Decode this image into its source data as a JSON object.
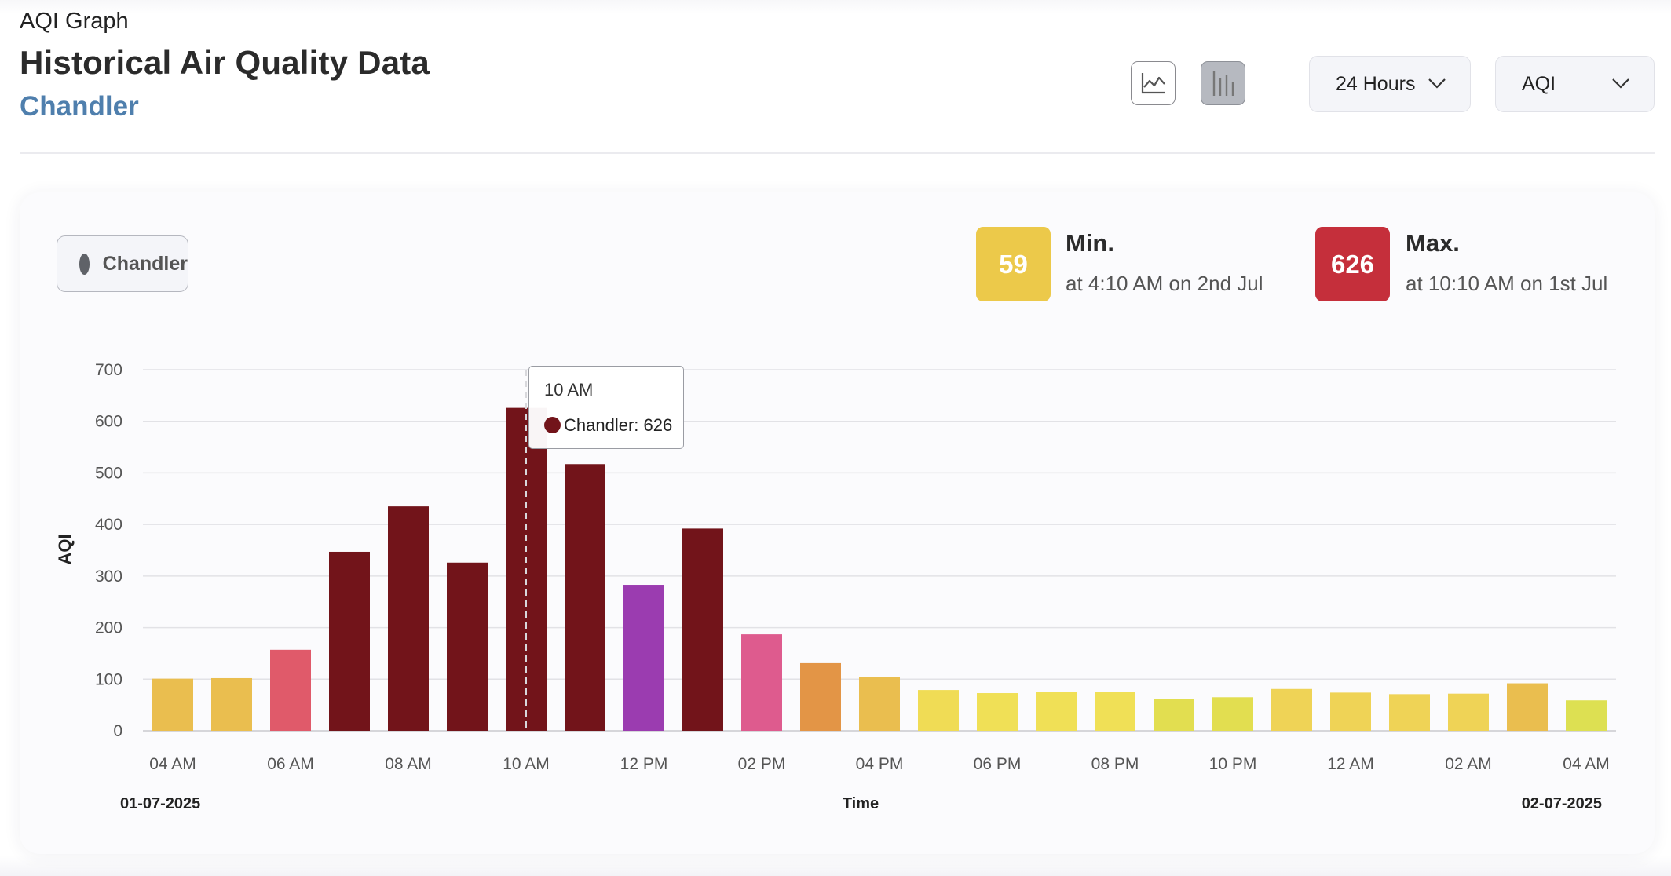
{
  "header": {
    "label": "AQI Graph",
    "title": "Historical Air Quality Data",
    "location": "Chandler"
  },
  "view_toggle": {
    "line_icon": "line-chart-icon",
    "bar_icon": "bar-chart-icon",
    "active": "bar"
  },
  "dropdowns": {
    "range": "24 Hours",
    "metric": "AQI"
  },
  "legend": {
    "label": "Chandler",
    "color": "#5f6268"
  },
  "stats": {
    "min": {
      "value": "59",
      "label": "Min.",
      "detail": "at 4:10 AM on 2nd Jul",
      "color": "#ecc94a"
    },
    "max": {
      "value": "626",
      "label": "Max.",
      "detail": "at 10:10 AM on 1st Jul",
      "color": "#c52f3b"
    }
  },
  "tooltip": {
    "time": "10 AM",
    "text": "Chandler: 626"
  },
  "chart_data": {
    "type": "bar",
    "xlabel": "Time",
    "ylabel": "AQI",
    "ylim": [
      0,
      700
    ],
    "yticks": [
      0,
      100,
      200,
      300,
      400,
      500,
      600,
      700
    ],
    "grid": true,
    "categories": [
      "04 AM",
      "05 AM",
      "06 AM",
      "07 AM",
      "08 AM",
      "09 AM",
      "10 AM",
      "11 AM",
      "12 PM",
      "01 PM",
      "02 PM",
      "03 PM",
      "04 PM",
      "05 PM",
      "06 PM",
      "07 PM",
      "08 PM",
      "09 PM",
      "10 PM",
      "11 PM",
      "12 AM",
      "01 AM",
      "02 AM",
      "03 AM",
      "04 AM"
    ],
    "xtick_labels": [
      "04 AM",
      "06 AM",
      "08 AM",
      "10 AM",
      "12 PM",
      "02 PM",
      "04 PM",
      "06 PM",
      "08 PM",
      "10 PM",
      "12 AM",
      "02 AM",
      "04 AM"
    ],
    "date_start": "01-07-2025",
    "date_end": "02-07-2025",
    "series": [
      {
        "name": "Chandler",
        "values": [
          101,
          102,
          157,
          347,
          435,
          326,
          626,
          517,
          283,
          392,
          187,
          131,
          104,
          79,
          73,
          75,
          75,
          62,
          65,
          81,
          74,
          71,
          72,
          92,
          59
        ],
        "colors": [
          "#eabe4f",
          "#eabe4f",
          "#e05a6a",
          "#72141a",
          "#72141a",
          "#72141a",
          "#72141a",
          "#72141a",
          "#9b3cb0",
          "#72141a",
          "#de5b8e",
          "#e39546",
          "#eabe4f",
          "#f0dc55",
          "#f0e056",
          "#f0e056",
          "#f0e056",
          "#e2de50",
          "#e2de50",
          "#efd356",
          "#efd356",
          "#efd356",
          "#efd356",
          "#eabe4f",
          "#dde052"
        ]
      }
    ],
    "highlight_index": 6
  }
}
